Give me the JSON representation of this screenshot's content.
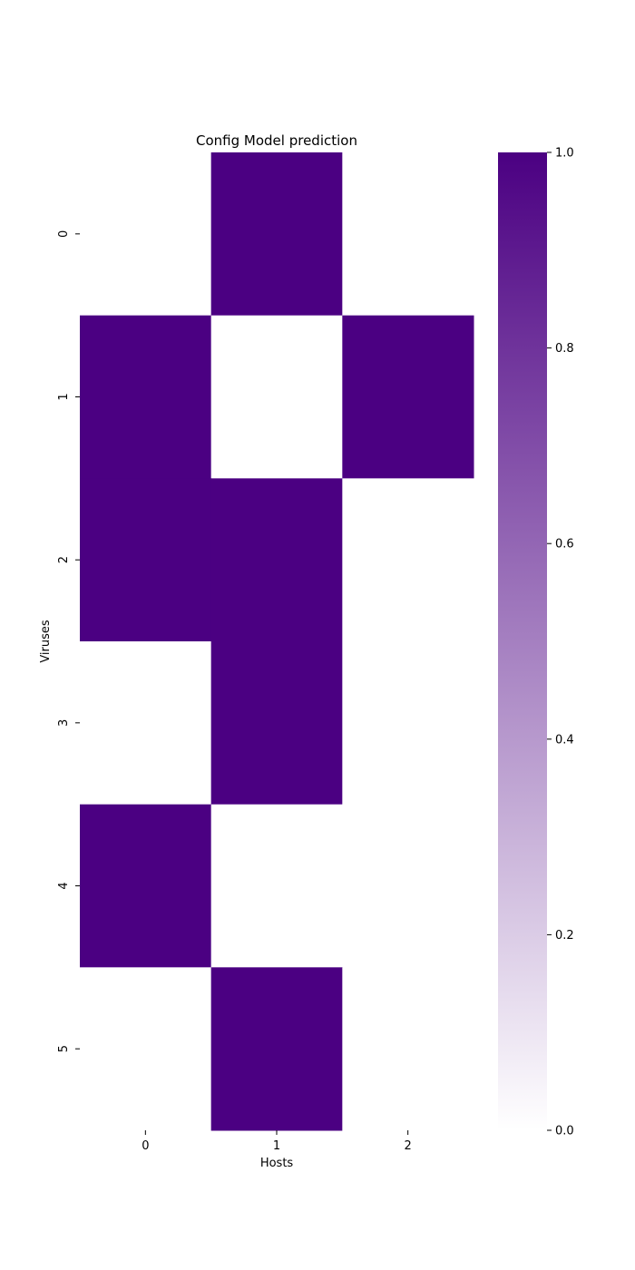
{
  "chart_data": {
    "type": "heatmap",
    "title": "Config Model prediction",
    "xlabel": "Hosts",
    "ylabel": "Viruses",
    "x_categories": [
      "0",
      "1",
      "2"
    ],
    "y_categories": [
      "0",
      "1",
      "2",
      "3",
      "4",
      "5"
    ],
    "values": [
      [
        0,
        1,
        0
      ],
      [
        1,
        0,
        1
      ],
      [
        1,
        1,
        0
      ],
      [
        0,
        1,
        0
      ],
      [
        1,
        0,
        0
      ],
      [
        0,
        1,
        0
      ]
    ],
    "colorbar": {
      "range": [
        0,
        1
      ],
      "ticks": [
        "0.0",
        "0.2",
        "0.4",
        "0.6",
        "0.8",
        "1.0"
      ]
    },
    "colors": {
      "low": "#ffffff",
      "high": "#4b0082"
    }
  }
}
